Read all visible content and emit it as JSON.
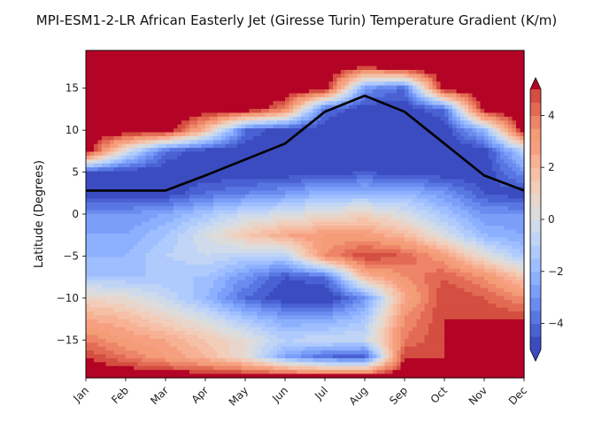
{
  "chart_data": {
    "type": "heatmap",
    "subtype": "filled-contour",
    "title": "MPI-ESM1-2-LR African Easterly Jet (Giresse Turin) Temperature Gradient (K/m)",
    "xlabel": "",
    "ylabel": "Latitude (Degrees)",
    "x_tick_labels": [
      "Jan",
      "Feb",
      "Mar",
      "Apr",
      "May",
      "Jun",
      "Jul",
      "Aug",
      "Sep",
      "Oct",
      "Nov",
      "Dec"
    ],
    "y_ticks": [
      -15,
      -10,
      -5,
      0,
      5,
      10,
      15
    ],
    "y_tick_labels": [
      "−15",
      "−10",
      "−5",
      "0",
      "5",
      "10",
      "15"
    ],
    "ylim": [
      -19.5,
      19.5
    ],
    "grid": false,
    "colormap": "coolwarm",
    "colorbar": {
      "ticks": [
        -4,
        -2,
        0,
        2,
        4
      ],
      "tick_labels": [
        "−4",
        "−2",
        "0",
        "2",
        "4"
      ],
      "vmin": -5,
      "vmax": 5,
      "extend": "both",
      "levels": [
        -5,
        -4.5,
        -4,
        -3.5,
        -3,
        -2.5,
        -2,
        -1.5,
        -1,
        -0.5,
        0,
        0.5,
        1,
        1.5,
        2,
        2.5,
        3,
        3.5,
        4,
        4.5,
        5
      ],
      "colors": [
        "#3b4cc0",
        "#4961d2",
        "#5977e3",
        "#6a8bef",
        "#7b9ff9",
        "#8db0fe",
        "#9ebeff",
        "#afcafc",
        "#c0d4f5",
        "#cfdaea",
        "#dddcdc",
        "#e8d6cc",
        "#f1cdba",
        "#f5c0a7",
        "#f7b194",
        "#f7a081",
        "#f39c76",
        "#ee8468",
        "#e36b54",
        "#d44e41",
        "#b40426"
      ]
    },
    "jet_line": {
      "color": "#000000",
      "x": [
        "Jan",
        "Feb",
        "Mar",
        "Apr",
        "May",
        "Jun",
        "Jul",
        "Aug",
        "Sep",
        "Oct",
        "Nov",
        "Dec"
      ],
      "y": [
        2.8,
        2.8,
        2.8,
        4.6,
        6.5,
        8.4,
        12.2,
        14.1,
        12.2,
        8.4,
        4.6,
        2.8
      ]
    },
    "field_lat_nodes": [
      -19.5,
      -17,
      -15,
      -12.5,
      -10,
      -7.5,
      -5,
      -2.5,
      0,
      2.5,
      5,
      7.5,
      10,
      12.5,
      15,
      17.5,
      19.5
    ],
    "field_values": [
      [
        6,
        6,
        6,
        6,
        6,
        6,
        6,
        6,
        6,
        6,
        6,
        6
      ],
      [
        5,
        4,
        3,
        2,
        0.5,
        -2.5,
        -4,
        -4.5,
        5,
        5,
        5,
        5
      ],
      [
        4,
        3,
        2.5,
        1.5,
        0.5,
        -1,
        -0.5,
        -0.5,
        4,
        5,
        5,
        5
      ],
      [
        2.5,
        2,
        1,
        0,
        -1.5,
        -2.5,
        -2.5,
        -1.5,
        3.5,
        5,
        5,
        5
      ],
      [
        1,
        0.5,
        -0.5,
        -2,
        -4,
        -5,
        -5.5,
        -3,
        2.5,
        5,
        4.5,
        3.5
      ],
      [
        -1.5,
        -1.5,
        -1.5,
        -1.5,
        -3,
        -4.5,
        -4,
        2,
        3.5,
        4.5,
        3.5,
        1.5
      ],
      [
        -2,
        -2,
        -1,
        -0.5,
        -1,
        -1,
        3.5,
        5,
        4.5,
        3,
        0.5,
        -1.5
      ],
      [
        -2.5,
        -2.5,
        -1.5,
        0,
        1.5,
        2.5,
        3,
        3,
        2,
        0,
        -2,
        -2.5
      ],
      [
        -3,
        -3,
        -2.5,
        -1.5,
        -0.5,
        0,
        0.5,
        1,
        0,
        -1.5,
        -3,
        -3
      ],
      [
        -5,
        -5,
        -5,
        -4,
        -3.5,
        -3,
        -2,
        -2,
        -2,
        -3,
        -4.5,
        -5
      ],
      [
        -4.5,
        -5,
        -5,
        -5,
        -5,
        -5,
        -5,
        -4.5,
        -5,
        -5,
        -5,
        -3
      ],
      [
        6,
        0,
        -4,
        -5,
        -5,
        -5,
        -5,
        -5,
        -5,
        -5,
        -5,
        -1
      ],
      [
        6,
        6,
        6,
        2,
        -4,
        -5,
        -5,
        -5,
        -5,
        -5,
        -2,
        6
      ],
      [
        6,
        6,
        6,
        6,
        6,
        4,
        -4,
        -5,
        -5,
        -4,
        6,
        6
      ],
      [
        6,
        6,
        6,
        6,
        6,
        6,
        6,
        -3,
        -4,
        6,
        6,
        6
      ],
      [
        6,
        6,
        6,
        6,
        6,
        6,
        6,
        5,
        6,
        6,
        6,
        6
      ],
      [
        6,
        6,
        6,
        6,
        6,
        6,
        6,
        6,
        6,
        6,
        6,
        6
      ]
    ]
  }
}
